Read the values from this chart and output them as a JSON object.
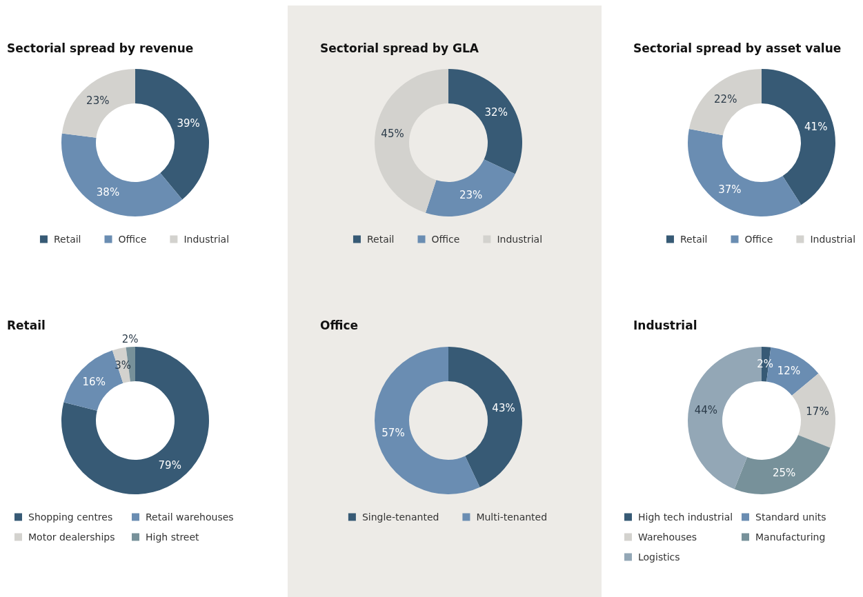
{
  "chart_data": [
    {
      "type": "donut",
      "title": "Sectorial spread by revenue",
      "categories": [
        "Retail",
        "Office",
        "Industrial"
      ],
      "values": [
        39,
        38,
        23
      ],
      "value_labels": [
        "39%",
        "38%",
        "23%"
      ],
      "colors": [
        "#375a75",
        "#6a8db2",
        "#d3d2ce"
      ],
      "legend": "bottom"
    },
    {
      "type": "donut",
      "title": "Sectorial spread by GLA",
      "categories": [
        "Retail",
        "Office",
        "Industrial"
      ],
      "values": [
        32,
        23,
        45
      ],
      "value_labels": [
        "32%",
        "23%",
        "45%"
      ],
      "colors": [
        "#375a75",
        "#6a8db2",
        "#d3d2ce"
      ],
      "legend": "bottom"
    },
    {
      "type": "donut",
      "title": "Sectorial spread by asset value",
      "categories": [
        "Retail",
        "Office",
        "Industrial"
      ],
      "values": [
        41,
        37,
        22
      ],
      "value_labels": [
        "41%",
        "37%",
        "22%"
      ],
      "colors": [
        "#375a75",
        "#6a8db2",
        "#d3d2ce"
      ],
      "legend": "bottom"
    },
    {
      "type": "donut",
      "title": "Retail",
      "categories": [
        "Shopping centres",
        "Retail warehouses",
        "Motor dealerships",
        "High street"
      ],
      "values": [
        79,
        16,
        3,
        2
      ],
      "value_labels": [
        "79%",
        "16%",
        "3%",
        "2%"
      ],
      "colors": [
        "#375a75",
        "#6a8db2",
        "#d3d2ce",
        "#77919a"
      ],
      "legend": "bottom"
    },
    {
      "type": "donut",
      "title": "Office",
      "categories": [
        "Single-tenanted",
        "Multi-tenanted"
      ],
      "values": [
        43,
        57
      ],
      "value_labels": [
        "43%",
        "57%"
      ],
      "colors": [
        "#375a75",
        "#6a8db2"
      ],
      "legend": "bottom"
    },
    {
      "type": "donut",
      "title": "Industrial",
      "categories": [
        "High tech industrial",
        "Standard units",
        "Warehouses",
        "Manufacturing",
        "Logistics"
      ],
      "values": [
        2,
        12,
        17,
        25,
        44
      ],
      "value_labels": [
        "2%",
        "12%",
        "17%",
        "25%",
        "44%"
      ],
      "colors": [
        "#375a75",
        "#6a8db2",
        "#d3d2ce",
        "#77919a",
        "#93a7b6"
      ],
      "legend": "bottom"
    }
  ]
}
